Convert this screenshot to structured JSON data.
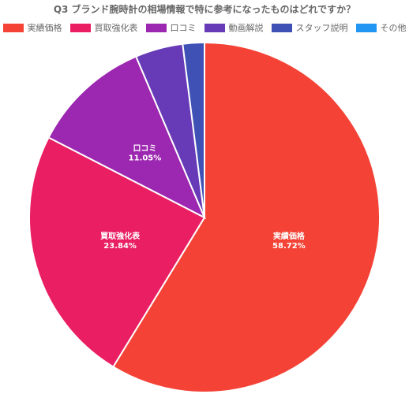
{
  "chart_data": {
    "type": "pie",
    "title": "Q3 ブランド腕時計の相場情報で特に参考になったものはどれですか？",
    "legend_position": "top",
    "categories": [
      "実績価格",
      "買取強化表",
      "口コミ",
      "動画解説",
      "スタッフ説明",
      "その他"
    ],
    "values": [
      58.72,
      23.84,
      11.05,
      4.4,
      1.99,
      0
    ],
    "value_labels": [
      "58.72%",
      "23.84%",
      "11.05%",
      "",
      "",
      ""
    ],
    "colors": [
      "#f44336",
      "#e91e63",
      "#9c27b0",
      "#673ab7",
      "#3f51b5",
      "#2196f3"
    ]
  }
}
